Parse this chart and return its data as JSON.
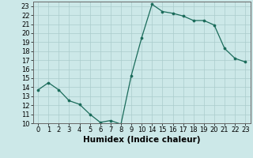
{
  "title": "",
  "xlabel": "Humidex (Indice chaleur)",
  "x": [
    0,
    1,
    2,
    3,
    4,
    5,
    6,
    7,
    8,
    9,
    10,
    14,
    15,
    16,
    17,
    18,
    19,
    20,
    21,
    22,
    23
  ],
  "y": [
    13.7,
    14.5,
    13.7,
    12.5,
    12.1,
    11.0,
    10.1,
    10.3,
    9.9,
    15.3,
    19.5,
    23.2,
    22.4,
    22.2,
    21.9,
    21.4,
    21.4,
    20.9,
    18.3,
    17.2,
    16.8
  ],
  "line_color": "#1a6b5a",
  "marker_color": "#1a6b5a",
  "bg_color": "#cce8e8",
  "grid_color": "#aacccc",
  "ylim": [
    10,
    23.5
  ],
  "yticks": [
    10,
    11,
    12,
    13,
    14,
    15,
    16,
    17,
    18,
    19,
    20,
    21,
    22,
    23
  ],
  "x_positions": [
    0,
    1,
    2,
    3,
    4,
    5,
    6,
    7,
    8,
    9,
    10,
    11,
    12,
    13,
    14,
    15,
    16,
    17,
    18,
    19,
    20
  ],
  "x_labels": [
    "0",
    "1",
    "2",
    "3",
    "4",
    "5",
    "6",
    "7",
    "8",
    "9",
    "10",
    "14",
    "15",
    "16",
    "17",
    "18",
    "19",
    "20",
    "21",
    "22",
    "23"
  ],
  "tick_fontsize": 6,
  "label_fontsize": 7.5
}
